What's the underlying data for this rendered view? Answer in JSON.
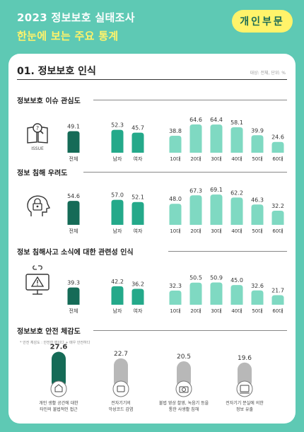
{
  "header": {
    "title": "2023 정보보호 실태조사",
    "subtitle": "한눈에 보는 주요 통계",
    "badge": "개인부문"
  },
  "section": {
    "title": "01. 정보보호 인식",
    "unit_note": "대상: 전체, 단위: %"
  },
  "icon_caption": "ISSUE",
  "colors": {
    "dark": "#156b57",
    "mid": "#24a98a",
    "light": "#7fd9c2",
    "gray": "#b8b8b8",
    "bg": "#5ec9b4",
    "yellow": "#fff36a"
  },
  "chart_data": [
    {
      "type": "bar",
      "title": "정보보호 이슈 관심도",
      "categories": [
        "전체",
        "남자",
        "여자",
        "10대",
        "20대",
        "30대",
        "40대",
        "50대",
        "60대"
      ],
      "values": [
        49.1,
        52.3,
        45.7,
        38.8,
        64.6,
        64.4,
        58.1,
        39.9,
        24.6
      ]
    },
    {
      "type": "bar",
      "title": "정보 침해 우려도",
      "categories": [
        "전체",
        "남자",
        "여자",
        "10대",
        "20대",
        "30대",
        "40대",
        "50대",
        "60대"
      ],
      "values": [
        54.6,
        57.0,
        52.1,
        48.0,
        67.3,
        69.1,
        62.2,
        46.3,
        32.2
      ]
    },
    {
      "type": "bar",
      "title": "정보 침해사고 소식에 대한 관련성 인식",
      "categories": [
        "전체",
        "남자",
        "여자",
        "10대",
        "20대",
        "30대",
        "40대",
        "50대",
        "60대"
      ],
      "values": [
        39.3,
        42.2,
        36.2,
        32.3,
        50.5,
        50.9,
        45.0,
        32.6,
        21.7
      ]
    },
    {
      "type": "bar",
      "title": "정보보호 안전 체감도",
      "note": "* 안전 체감도 : 안전한 편이다 + 매우 안전하다",
      "categories": [
        "개인 생활 공간에 대한 타인의 불법적인 접근",
        "전자기기의 악성코드 감염",
        "불법 영상 촬영, 녹음기 등을 통한 사생활 침해",
        "전자기기 분실에 의한 정보 유출"
      ],
      "values": [
        27.6,
        22.7,
        20.5,
        19.6
      ]
    }
  ]
}
